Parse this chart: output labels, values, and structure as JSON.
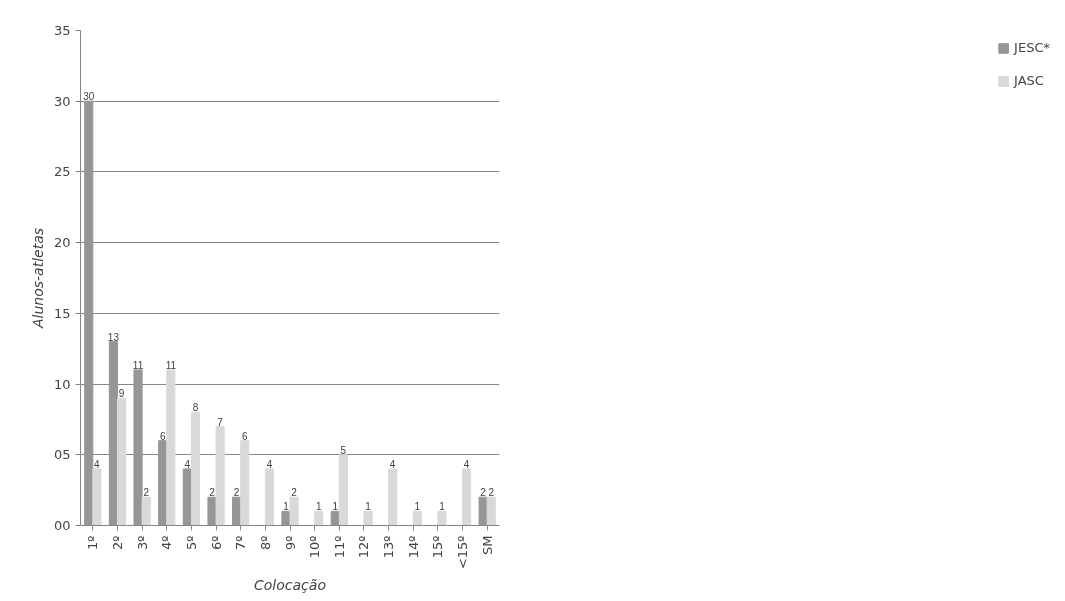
{
  "chart_data": {
    "type": "bar",
    "xlabel": "Colocação",
    "ylabel": "Alunos-atletas",
    "categories": [
      "1º",
      "2º",
      "3º",
      "4º",
      "5º",
      "6º",
      "7º",
      "8º",
      "9º",
      "10º",
      "11º",
      "12º",
      "13º",
      "14º",
      "15º",
      "<15º",
      "SM"
    ],
    "series": [
      {
        "name": "JESC*",
        "color": "#969696",
        "values": [
          30,
          13,
          11,
          6,
          4,
          2,
          2,
          0,
          1,
          0,
          1,
          0,
          0,
          0,
          0,
          0,
          2
        ],
        "value_labels": [
          "30",
          "13",
          "11",
          "6",
          "4",
          "2",
          "2",
          null,
          "1",
          null,
          "1",
          null,
          null,
          null,
          null,
          null,
          "2"
        ]
      },
      {
        "name": "JASC",
        "color": "#d9d9d9",
        "values": [
          4,
          9,
          2,
          11,
          8,
          7,
          6,
          4,
          2,
          1,
          5,
          1,
          4,
          1,
          1,
          4,
          2
        ],
        "value_labels": [
          "4",
          "9",
          "2",
          "11",
          "8",
          "7",
          "6",
          "4",
          "2",
          "1",
          "5",
          "1",
          "4",
          "1",
          "1",
          "4",
          "2"
        ]
      }
    ],
    "ylim": [
      0,
      35
    ],
    "yticks": [
      {
        "value": 0,
        "label": "00"
      },
      {
        "value": 5,
        "label": "05"
      },
      10,
      15,
      20,
      25,
      30,
      35
    ],
    "grid": "y",
    "legend": "right"
  }
}
